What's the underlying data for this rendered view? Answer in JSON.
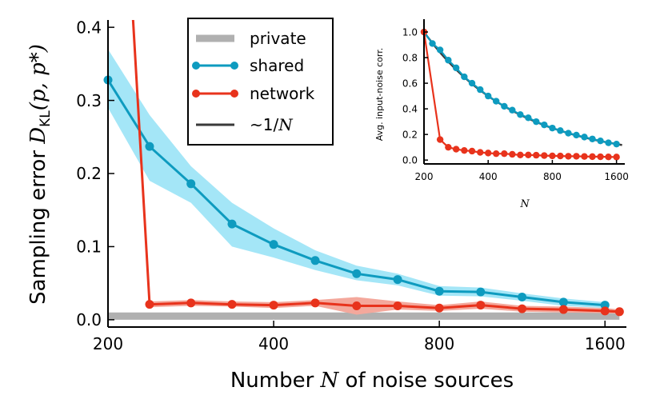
{
  "chart_data": [
    {
      "type": "line",
      "xscale": "log2",
      "xlim": [
        200,
        1750
      ],
      "ylim": [
        -0.01,
        0.41
      ],
      "xticks": [
        200,
        400,
        800,
        1600
      ],
      "yticks": [
        0.0,
        0.1,
        0.2,
        0.3,
        0.4
      ],
      "xtick_labels": [
        "200",
        "400",
        "800",
        "1600"
      ],
      "ytick_labels": [
        "0.0",
        "0.1",
        "0.2",
        "0.3",
        "0.4"
      ],
      "xlabel_pre": "Number ",
      "xlabel_var": "N",
      "xlabel_post": " of noise sources",
      "ylabel_pre": "Sampling error ",
      "ylabel_math_D": "D",
      "ylabel_math_sub": "KL",
      "ylabel_math_args": "(p, p*)",
      "legend_position": "top-center",
      "legend": [
        {
          "key": "private",
          "label": "private"
        },
        {
          "key": "shared",
          "label": "shared"
        },
        {
          "key": "network",
          "label": "network"
        },
        {
          "key": "fit",
          "label_prefix": "~1/",
          "label_var": "N"
        }
      ],
      "series": [
        {
          "name": "private",
          "style": "band",
          "color": "#b0b0b0",
          "x": [
            200,
            1700
          ],
          "lower": [
            0.0,
            0.0
          ],
          "upper": [
            0.01,
            0.01
          ]
        },
        {
          "name": "shared",
          "color": "#0e9bbf",
          "band_color": "#a4e6f7",
          "x": [
            200,
            238,
            283,
            336,
            400,
            476,
            566,
            672,
            800,
            951,
            1131,
            1345,
            1600
          ],
          "y": [
            0.328,
            0.237,
            0.186,
            0.131,
            0.103,
            0.081,
            0.063,
            0.055,
            0.039,
            0.038,
            0.031,
            0.024,
            0.02
          ],
          "lower": [
            0.29,
            0.19,
            0.16,
            0.1,
            0.085,
            0.068,
            0.054,
            0.047,
            0.033,
            0.032,
            0.026,
            0.019,
            0.016
          ],
          "upper": [
            0.37,
            0.28,
            0.21,
            0.16,
            0.125,
            0.095,
            0.074,
            0.063,
            0.046,
            0.044,
            0.036,
            0.029,
            0.024
          ]
        },
        {
          "name": "network",
          "color": "#e8331c",
          "band_color": "#f4a89c",
          "line_start": [
            200,
            1.0
          ],
          "x": [
            238,
            283,
            336,
            400,
            476,
            566,
            672,
            800,
            951,
            1131,
            1345,
            1600,
            1700
          ],
          "y": [
            0.021,
            0.023,
            0.021,
            0.02,
            0.023,
            0.019,
            0.019,
            0.016,
            0.02,
            0.015,
            0.014,
            0.012,
            0.011
          ],
          "lower": [
            0.017,
            0.019,
            0.018,
            0.016,
            0.019,
            0.007,
            0.014,
            0.012,
            0.015,
            0.011,
            0.01,
            0.009,
            0.008
          ],
          "upper": [
            0.025,
            0.027,
            0.025,
            0.024,
            0.027,
            0.031,
            0.025,
            0.02,
            0.025,
            0.019,
            0.018,
            0.016,
            0.014
          ]
        }
      ],
      "marker_legend_labels_bound": true
    },
    {
      "type": "line",
      "xscale": "log2",
      "xlim": [
        200,
        1750
      ],
      "ylim": [
        -0.03,
        1.1
      ],
      "xticks": [
        200,
        400,
        800,
        1600
      ],
      "yticks": [
        0.0,
        0.2,
        0.4,
        0.6,
        0.8,
        1.0
      ],
      "xtick_labels": [
        "200",
        "400",
        "800",
        "1600"
      ],
      "ytick_labels": [
        "0.0",
        "0.2",
        "0.4",
        "0.6",
        "0.8",
        "1.0"
      ],
      "xlabel": "N",
      "ylabel": "Avg. input-noise corr.",
      "series": [
        {
          "name": "~1/N",
          "color": "#3a3a3a",
          "x": [
            200,
            1700
          ],
          "y": [
            1.0,
            0.1176
          ]
        },
        {
          "name": "shared",
          "color": "#0e9bbf",
          "x": [
            200,
            219,
            238,
            260,
            283,
            309,
            336,
            367,
            400,
            436,
            476,
            519,
            566,
            617,
            672,
            733,
            800,
            872,
            951,
            1037,
            1131,
            1233,
            1345,
            1466,
            1600
          ],
          "y": [
            1.0,
            0.91,
            0.86,
            0.78,
            0.72,
            0.65,
            0.6,
            0.55,
            0.5,
            0.46,
            0.42,
            0.39,
            0.355,
            0.33,
            0.3,
            0.275,
            0.25,
            0.23,
            0.21,
            0.195,
            0.18,
            0.165,
            0.15,
            0.135,
            0.125
          ]
        },
        {
          "name": "network",
          "color": "#e8331c",
          "x": [
            200,
            238,
            260,
            283,
            309,
            336,
            367,
            400,
            436,
            476,
            519,
            566,
            617,
            672,
            733,
            800,
            872,
            951,
            1037,
            1131,
            1233,
            1345,
            1466,
            1600
          ],
          "y": [
            1.0,
            0.16,
            0.1,
            0.085,
            0.075,
            0.07,
            0.06,
            0.055,
            0.05,
            0.05,
            0.045,
            0.04,
            0.04,
            0.038,
            0.035,
            0.033,
            0.032,
            0.03,
            0.03,
            0.028,
            0.027,
            0.026,
            0.025,
            0.024
          ]
        }
      ]
    }
  ]
}
